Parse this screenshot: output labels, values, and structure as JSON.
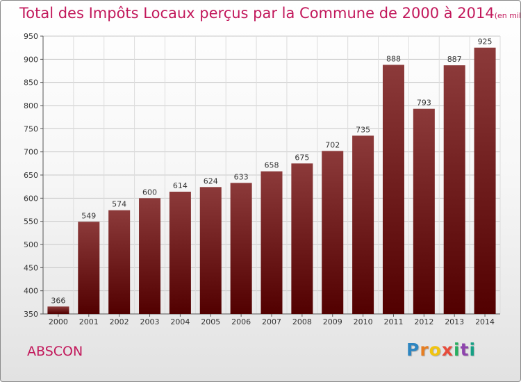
{
  "header": {
    "title": "Total des Impôts Locaux perçus par la Commune de 2000 à 2014",
    "unit": "(en milliers d'€)"
  },
  "commune": "ABSCON",
  "brand": {
    "letters": [
      "P",
      "r",
      "o",
      "x",
      "i",
      "t",
      "i"
    ],
    "colors": [
      "#2e86c1",
      "#e67e22",
      "#f1c40f",
      "#e74c3c",
      "#27ae60",
      "#8e44ad",
      "#16a085"
    ]
  },
  "colors": {
    "bar_light": "#8c3a3a",
    "bar_dark": "#520000",
    "title": "#c2185b"
  },
  "chart_data": {
    "type": "bar",
    "categories": [
      "2000",
      "2001",
      "2002",
      "2003",
      "2004",
      "2005",
      "2006",
      "2007",
      "2008",
      "2009",
      "2010",
      "2011",
      "2012",
      "2013",
      "2014"
    ],
    "values": [
      366,
      549,
      574,
      600,
      614,
      624,
      633,
      658,
      675,
      702,
      735,
      888,
      793,
      887,
      925
    ],
    "ylim": [
      350,
      950
    ],
    "yticks": [
      350,
      400,
      450,
      500,
      550,
      600,
      650,
      700,
      750,
      800,
      850,
      900,
      950
    ],
    "grid": true
  }
}
